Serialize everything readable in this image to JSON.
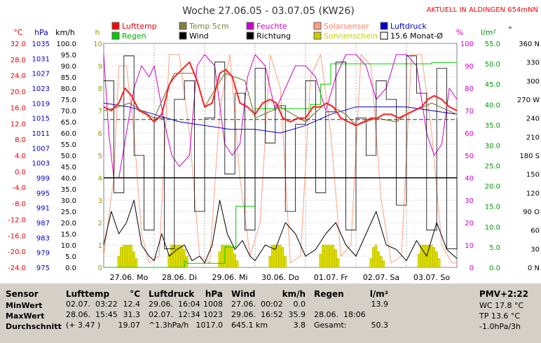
{
  "chart_data": {
    "type": "line",
    "title": "Woche 27.06.05 - 03.07.05 (KW26)",
    "subtitle": "AKTUELL IN ALDINGEN 654mNN",
    "x_categories": [
      "27.06. Mo",
      "28.06. Di",
      "29.06. Mi",
      "30.06. Do",
      "01.07. Fr",
      "02.07. Sa",
      "03.07. So"
    ],
    "axes": {
      "temp_c": {
        "label": "°C",
        "ylim": [
          -24,
          36
        ],
        "ticks": [
          "32.0",
          "28.0",
          "24.0",
          "20.0",
          "16.0",
          "12.0",
          "8.0",
          "4.0",
          "0.0",
          "-4.0",
          "-8.0",
          "-12.0",
          "-16.0",
          "-20.0",
          "-24.0"
        ]
      },
      "pressure_hpa": {
        "label": "hPa",
        "ticks": [
          "1035",
          "1031",
          "1027",
          "1023",
          "1019",
          "1015",
          "1011",
          "1007",
          "1003",
          "999",
          "995",
          "991",
          "987",
          "983",
          "979",
          "975"
        ]
      },
      "wind_kmh": {
        "label": "km/h",
        "ylim": [
          0,
          100
        ],
        "ticks": [
          "100.0",
          "95.0",
          "90.0",
          "85.0",
          "80.0",
          "75.0",
          "70.0",
          "65.0",
          "60.0",
          "55.0",
          "50.0",
          "45.0",
          "40.0",
          "35.0",
          "30.0",
          "25.0",
          "20.0",
          "15.0",
          "10.0",
          "5.0",
          "0.0"
        ]
      },
      "sun_h": {
        "label": "h",
        "ylim": [
          0,
          10
        ],
        "ticks": [
          "10",
          "9",
          "8",
          "7",
          "6",
          "5",
          "4",
          "3",
          "2",
          "1",
          "0"
        ]
      },
      "humidity_pct": {
        "label": "%",
        "ylim": [
          0,
          100
        ],
        "ticks": [
          "100",
          "90",
          "80",
          "70",
          "60",
          "50",
          "40",
          "30",
          "20",
          "10",
          "0"
        ]
      },
      "rain_lm2": {
        "label": "l/m²",
        "ylim": [
          0,
          55
        ],
        "ticks": [
          "55.0",
          "50.0",
          "45.0",
          "40.0",
          "35.0",
          "30.0",
          "25.0",
          "20.0",
          "15.0",
          "10.0",
          "5.0",
          "0.0"
        ]
      },
      "direction_deg": {
        "label": "°",
        "ylim": [
          0,
          360
        ],
        "ticks": [
          "360 N",
          "330",
          "300",
          "270 W",
          "240",
          "210",
          "180 S",
          "150",
          "120",
          "90 O",
          "60",
          "30",
          "0 N"
        ]
      }
    },
    "legend": [
      {
        "name": "Lufttemp",
        "color": "#ff0000"
      },
      {
        "name": "Temp 5cm",
        "color": "#808040"
      },
      {
        "name": "Feuchte",
        "color": "#cc00cc"
      },
      {
        "name": "Solarsensor",
        "color": "#ffa080"
      },
      {
        "name": "Luftdruck",
        "color": "#0000cc"
      },
      {
        "name": "Regen",
        "color": "#00cc00"
      },
      {
        "name": "Wind",
        "color": "#000000"
      },
      {
        "name": "Richtung",
        "color": "#000000"
      },
      {
        "name": "Sonnenschein",
        "color": "#cccc00"
      },
      {
        "name": "15.6 Monat-Ø",
        "color": "#9999cc"
      }
    ],
    "series": [
      {
        "name": "Lufttemp",
        "unit": "°C",
        "x": [
          0,
          0.15,
          0.3,
          0.42,
          0.55,
          0.7,
          0.85,
          1,
          1.15,
          1.3,
          1.4,
          1.55,
          1.7,
          1.85,
          2,
          2.15,
          2.3,
          2.42,
          2.55,
          2.7,
          2.85,
          3,
          3.15,
          3.3,
          3.42,
          3.55,
          3.7,
          3.85,
          4,
          4.15,
          4.3,
          4.42,
          4.55,
          4.7,
          4.85,
          5,
          5.15,
          5.3,
          5.42,
          5.55,
          5.7,
          5.85,
          6,
          6.15,
          6.3,
          6.42,
          6.55,
          6.7,
          6.85,
          7
        ],
        "values": [
          19,
          18,
          20,
          24,
          22,
          18,
          17,
          15,
          17,
          25,
          27,
          29,
          31,
          26,
          19,
          20,
          28,
          29,
          27,
          20,
          19,
          17,
          20,
          21,
          20,
          16,
          15,
          16,
          16,
          19,
          19,
          20,
          19,
          16,
          15,
          14,
          15,
          16,
          16,
          17,
          17,
          16,
          17,
          18,
          19,
          21,
          22,
          21,
          19,
          18
        ]
      },
      {
        "name": "Temp 5cm",
        "unit": "°C",
        "x": [
          0,
          0.3,
          0.5,
          1,
          1.4,
          1.8,
          2,
          2.4,
          2.8,
          3,
          3.5,
          4,
          4.4,
          4.8,
          5,
          5.4,
          5.8,
          6,
          6.5,
          7
        ],
        "values": [
          18,
          19,
          20,
          16,
          28,
          28,
          19,
          28,
          26,
          16,
          19,
          15,
          20,
          17,
          14,
          16,
          15,
          17,
          20,
          17
        ]
      },
      {
        "name": "Feuchte",
        "unit": "%",
        "x": [
          0,
          0.1,
          0.2,
          0.3,
          0.45,
          0.6,
          0.75,
          0.9,
          1,
          1.2,
          1.35,
          1.5,
          1.7,
          1.85,
          2,
          2.2,
          2.4,
          2.55,
          2.7,
          2.85,
          3,
          3.2,
          3.4,
          3.6,
          3.8,
          4,
          4.2,
          4.4,
          4.6,
          4.8,
          5,
          5.2,
          5.4,
          5.6,
          5.8,
          6,
          6.2,
          6.4,
          6.55,
          6.7,
          6.85,
          7
        ],
        "values": [
          95,
          60,
          40,
          40,
          60,
          80,
          90,
          85,
          90,
          65,
          50,
          45,
          50,
          90,
          95,
          90,
          55,
          50,
          55,
          85,
          95,
          90,
          70,
          80,
          90,
          90,
          85,
          70,
          85,
          95,
          95,
          90,
          75,
          80,
          95,
          95,
          90,
          60,
          50,
          55,
          80,
          75
        ]
      },
      {
        "name": "Solarsensor",
        "unit": "%",
        "x": [
          0,
          0.2,
          0.3,
          0.45,
          0.6,
          0.75,
          0.9,
          1.1,
          1.3,
          1.5,
          1.7,
          1.9,
          2.1,
          2.3,
          2.5,
          2.7,
          2.9,
          3.1,
          3.3,
          3.5,
          3.7,
          3.9,
          4.1,
          4.3,
          4.5,
          4.7,
          4.9,
          5.1,
          5.3,
          5.5,
          5.7,
          5.9,
          6.1,
          6.3,
          6.5,
          6.7,
          6.9,
          7
        ],
        "values": [
          5,
          40,
          90,
          90,
          60,
          15,
          2,
          5,
          95,
          95,
          60,
          5,
          2,
          70,
          95,
          40,
          5,
          20,
          95,
          80,
          2,
          5,
          85,
          95,
          60,
          5,
          10,
          95,
          90,
          30,
          2,
          5,
          95,
          95,
          60,
          10,
          2,
          2
        ]
      },
      {
        "name": "Luftdruck",
        "unit": "hPa",
        "x": [
          0,
          0.5,
          1,
          1.5,
          2,
          2.5,
          3,
          3.5,
          4,
          4.5,
          5,
          5.5,
          6,
          6.5,
          7
        ],
        "values": [
          1019,
          1018,
          1016,
          1014,
          1013,
          1012,
          1012,
          1011,
          1013,
          1016,
          1018,
          1018,
          1018,
          1017,
          1016
        ]
      },
      {
        "name": "Regen",
        "unit": "l/m²",
        "x": [
          0,
          1.5,
          1.6,
          1.65,
          2.35,
          2.4,
          2.6,
          2.62,
          3,
          4,
          4.1,
          4.3,
          4.5,
          4.7,
          5,
          5.2,
          5.5,
          6,
          6.5,
          7
        ],
        "values": [
          0,
          0,
          1.5,
          1,
          1,
          5,
          5,
          15,
          39,
          39,
          40,
          45,
          50,
          50,
          50,
          50,
          50,
          50,
          50.3,
          50.3
        ]
      },
      {
        "name": "Wind",
        "unit": "km/h",
        "x": [
          0,
          0.15,
          0.3,
          0.45,
          0.6,
          0.75,
          0.9,
          1,
          1.15,
          1.3,
          1.45,
          1.6,
          1.75,
          1.9,
          2,
          2.15,
          2.3,
          2.45,
          2.6,
          2.75,
          2.9,
          3,
          3.2,
          3.4,
          3.6,
          3.8,
          4,
          4.2,
          4.4,
          4.6,
          4.8,
          5,
          5.2,
          5.4,
          5.6,
          5.8,
          6,
          6.2,
          6.4,
          6.6,
          6.8,
          7
        ],
        "values": [
          10,
          25,
          15,
          20,
          30,
          10,
          5,
          3,
          15,
          5,
          8,
          10,
          3,
          5,
          2,
          10,
          30,
          15,
          8,
          12,
          5,
          3,
          10,
          8,
          20,
          15,
          5,
          8,
          15,
          20,
          10,
          5,
          15,
          25,
          10,
          8,
          3,
          12,
          5,
          20,
          8,
          4
        ]
      },
      {
        "name": "Richtung",
        "unit": "°",
        "x": [
          0,
          0.2,
          0.4,
          0.6,
          0.8,
          1,
          1.2,
          1.4,
          1.6,
          1.8,
          2,
          2.2,
          2.4,
          2.6,
          2.8,
          3,
          3.2,
          3.4,
          3.6,
          3.8,
          4,
          4.2,
          4.4,
          4.6,
          4.8,
          5,
          5.2,
          5.4,
          5.6,
          5.8,
          6,
          6.2,
          6.4,
          6.6,
          6.8,
          7
        ],
        "values": [
          300,
          120,
          340,
          180,
          60,
          240,
          30,
          270,
          300,
          90,
          240,
          330,
          150,
          280,
          60,
          320,
          200,
          260,
          90,
          230,
          300,
          120,
          250,
          330,
          60,
          240,
          180,
          300,
          270,
          100,
          340,
          280,
          60,
          320,
          30,
          240
        ]
      },
      {
        "name": "Sonnenschein",
        "unit": "h",
        "x": [
          0.3,
          0.35,
          0.4,
          0.45,
          0.5,
          0.55,
          0.6,
          0.65,
          1.3,
          1.35,
          1.4,
          1.45,
          1.5,
          1.55,
          1.6,
          1.65,
          2.3,
          2.35,
          2.4,
          2.45,
          2.5,
          2.55,
          2.6,
          2.65,
          3.3,
          3.35,
          3.4,
          3.45,
          3.5,
          3.55,
          3.6,
          4.3,
          4.35,
          4.4,
          4.45,
          4.5,
          4.55,
          4.6,
          4.65,
          5.3,
          5.35,
          5.4,
          5.45,
          5.5,
          5.55,
          6.25,
          6.3,
          6.35,
          6.4,
          6.45,
          6.5,
          6.55,
          6.6,
          6.65
        ],
        "values": [
          0.5,
          0.9,
          1,
          1,
          1,
          1,
          0.7,
          0.4,
          0.6,
          1,
          1,
          1,
          1,
          1,
          0.8,
          0.5,
          0.7,
          1,
          1,
          1,
          1,
          0.9,
          0.6,
          0.3,
          0.5,
          1,
          1,
          1,
          1,
          0.9,
          0.5,
          0.6,
          1,
          1,
          1,
          1,
          1,
          0.8,
          0.4,
          0.4,
          0.9,
          1,
          0.7,
          0.5,
          0.3,
          0.6,
          1,
          1,
          1,
          1,
          1,
          0.9,
          0.7,
          0.4
        ]
      },
      {
        "name": "15.6 Monat-Ø",
        "unit": "°C",
        "values": [
          15.6
        ]
      }
    ],
    "grid": true
  },
  "table": {
    "header": {
      "sensor": "Sensor",
      "lufttemp": "Lufttemp",
      "lufttemp_unit": "°C",
      "luftdruck": "Luftdruck",
      "luftdruck_unit": "hPa",
      "wind": "Wind",
      "wind_unit": "km/h",
      "regen": "Regen",
      "regen_unit": "l/m²",
      "pmv": "PMV+2:22"
    },
    "rows": [
      {
        "label": "MinWert",
        "t_date": "02.07.",
        "t_time": "03:22",
        "t_val": "12.4",
        "p_date": "29.06.",
        "p_time": "16:04",
        "p_val": "1008",
        "w_date": "27.06.",
        "w_time": "00:02",
        "w_val": "0.0",
        "r_date": "",
        "r_time": "",
        "r_val": "13.9",
        "pmv": "WC 17.8 °C"
      },
      {
        "label": "MaxWert",
        "t_date": "28.06.",
        "t_time": "15:45",
        "t_val": "31.3",
        "p_date": "02.07.",
        "p_time": "12:34",
        "p_val": "1023",
        "w_date": "29.06.",
        "w_time": "16:52",
        "w_val": "35.9",
        "r_date": "28.06.",
        "r_time": "18:06",
        "r_val": "",
        "pmv": "TP 13.6 °C"
      },
      {
        "label": "Durchschnitt",
        "t_date": "(+ 3.47 )",
        "t_time": "",
        "t_val": "19.07",
        "p_date": "^1.3hPa/h",
        "p_time": "",
        "p_val": "1017.0",
        "w_date": "645.1 km",
        "w_time": "",
        "w_val": "3.8",
        "r_date": "Gesamt:",
        "r_time": "",
        "r_val": "50.3",
        "pmv": "-1.0hPa/3h"
      }
    ]
  }
}
